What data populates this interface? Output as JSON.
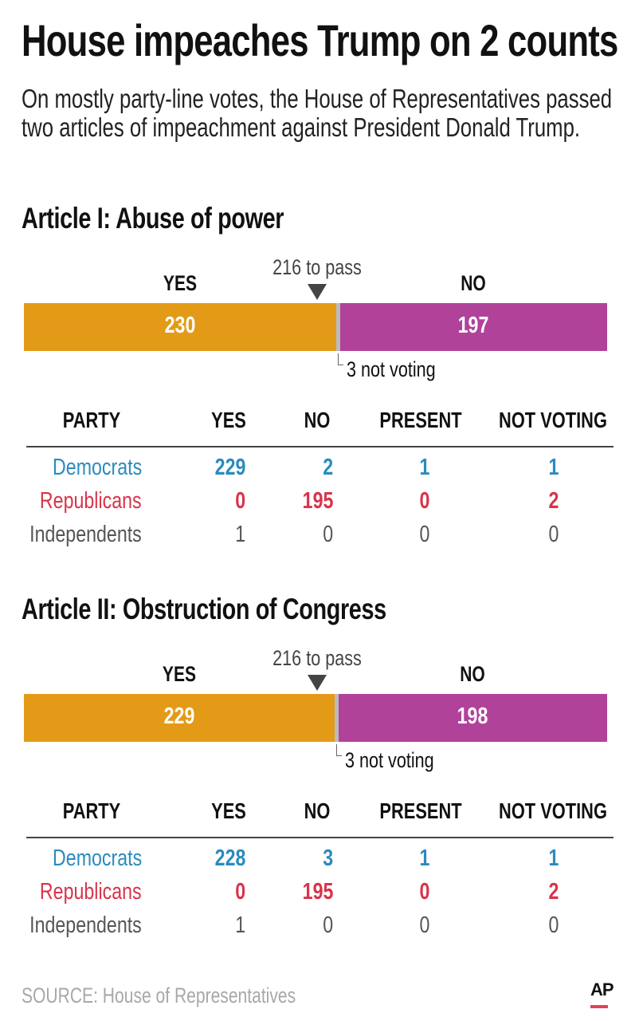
{
  "title": "House impeaches Trump on 2 counts",
  "subtitle": "On mostly party-line votes, the House of Representatives passed two articles of impeachment against President Donald Trump.",
  "colors": {
    "yes": "#E39A17",
    "no": "#B0429A",
    "not_voting": "#BBBBBB",
    "democrats": "#2A8BBF",
    "republicans": "#D9334A",
    "independents": "#555555"
  },
  "chart_data": [
    {
      "type": "bar",
      "title": "Article I: Abuse of power",
      "labels": {
        "yes": "YES",
        "no": "NO"
      },
      "threshold": 216,
      "threshold_label": "216 to pass",
      "values": {
        "yes": 230,
        "no": 197,
        "not_voting": 3
      },
      "value_labels": {
        "yes": "230",
        "no": "197"
      },
      "not_voting_label": "3 not voting",
      "table": {
        "columns": [
          "PARTY",
          "YES",
          "NO",
          "PRESENT",
          "NOT VOTING"
        ],
        "rows": [
          {
            "party": "Democrats",
            "key": "democrats",
            "values": [
              "229",
              "2",
              "1",
              "1"
            ]
          },
          {
            "party": "Republicans",
            "key": "republicans",
            "values": [
              "0",
              "195",
              "0",
              "2"
            ]
          },
          {
            "party": "Independents",
            "key": "independents",
            "values": [
              "1",
              "0",
              "0",
              "0"
            ]
          }
        ]
      }
    },
    {
      "type": "bar",
      "title": "Article II: Obstruction of Congress",
      "labels": {
        "yes": "YES",
        "no": "NO"
      },
      "threshold": 216,
      "threshold_label": "216 to pass",
      "values": {
        "yes": 229,
        "no": 198,
        "not_voting": 3
      },
      "value_labels": {
        "yes": "229",
        "no": "198"
      },
      "not_voting_label": "3 not voting",
      "table": {
        "columns": [
          "PARTY",
          "YES",
          "NO",
          "PRESENT",
          "NOT VOTING"
        ],
        "rows": [
          {
            "party": "Democrats",
            "key": "democrats",
            "values": [
              "228",
              "3",
              "1",
              "1"
            ]
          },
          {
            "party": "Republicans",
            "key": "republicans",
            "values": [
              "0",
              "195",
              "0",
              "2"
            ]
          },
          {
            "party": "Independents",
            "key": "independents",
            "values": [
              "1",
              "0",
              "0",
              "0"
            ]
          }
        ]
      }
    }
  ],
  "source": "SOURCE: House of Representatives",
  "logo": "AP"
}
